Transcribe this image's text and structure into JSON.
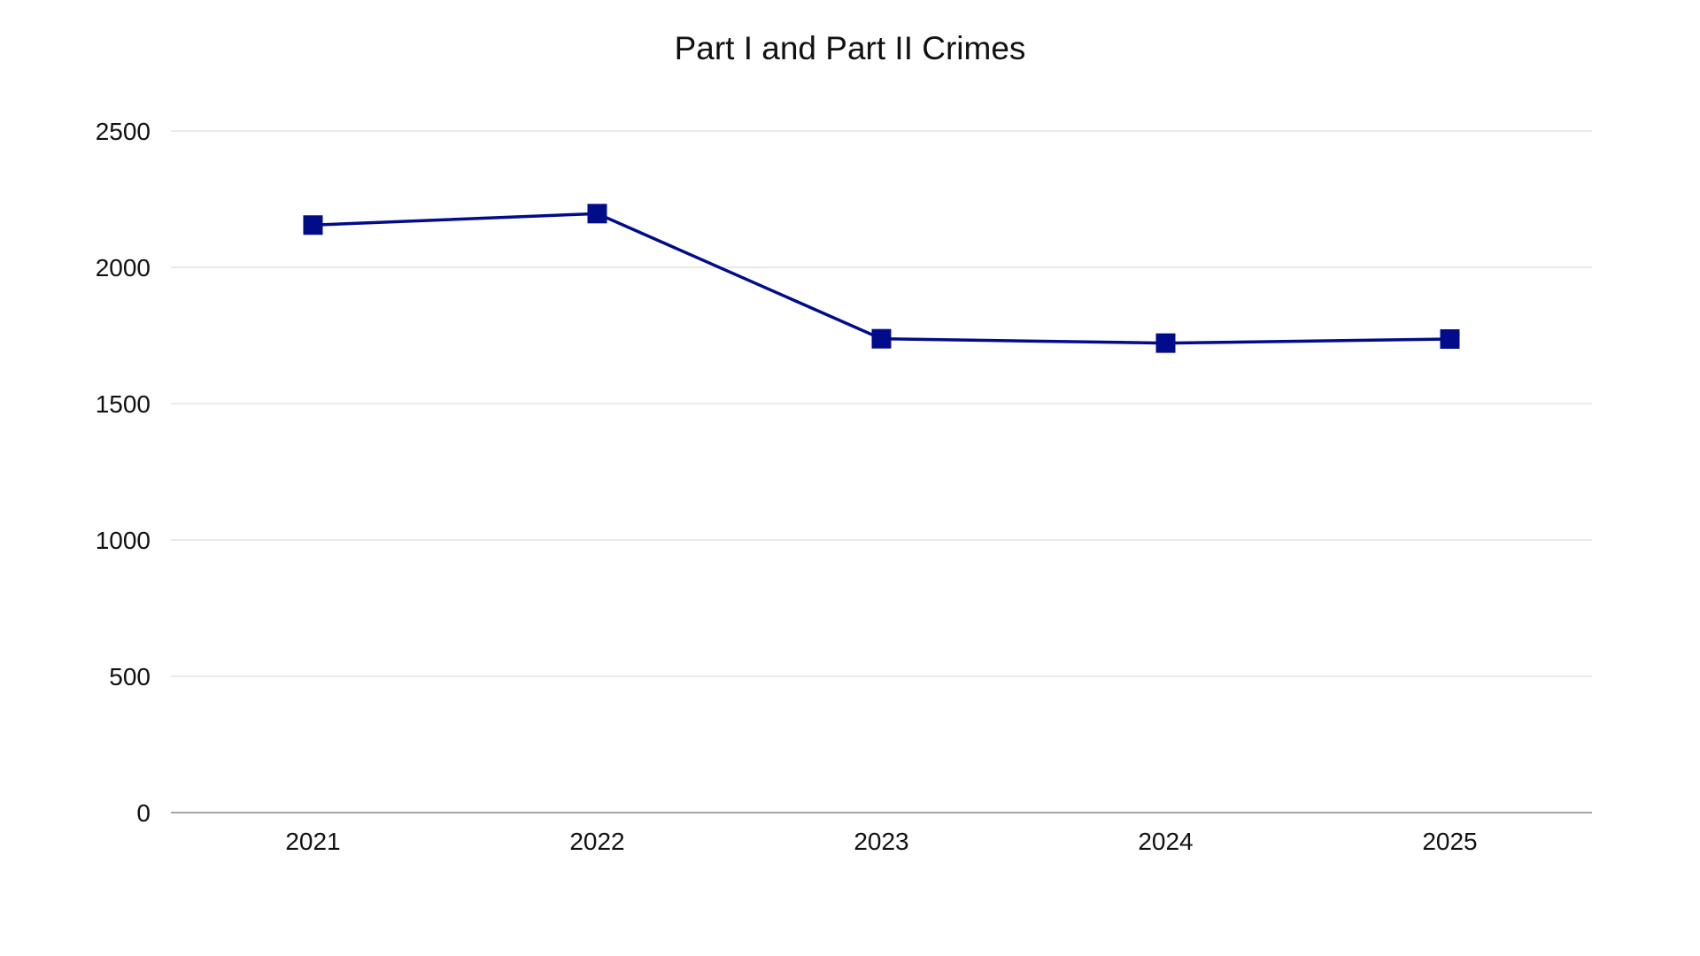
{
  "chart_data": {
    "type": "line",
    "title": "Part I and Part II Crimes",
    "xlabel": "",
    "ylabel": "",
    "categories": [
      "2021",
      "2022",
      "2023",
      "2024",
      "2025"
    ],
    "series": [
      {
        "values": [
          2155,
          2197,
          1738,
          1722,
          1737
        ],
        "color": "#000c8a",
        "marker": "square"
      }
    ],
    "ylim": [
      0,
      2500
    ],
    "yticks": [
      "0",
      "500",
      "1000",
      "1500",
      "2000",
      "2500"
    ],
    "grid": true,
    "legend": "none"
  }
}
